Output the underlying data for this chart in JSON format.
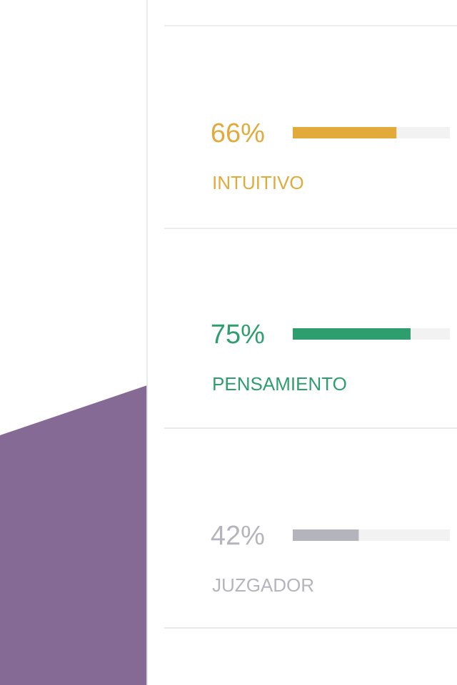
{
  "chart_data": {
    "type": "bar",
    "orientation": "horizontal",
    "categories": [
      "INTUITIVO",
      "PENSAMIENTO",
      "JUZGADOR"
    ],
    "values": [
      66,
      75,
      42
    ],
    "value_labels": [
      "66%",
      "75%",
      "42%"
    ],
    "colors": [
      "#e2a93b",
      "#2f9e6f",
      "#b4b4bc"
    ],
    "xlim": [
      0,
      100
    ]
  }
}
